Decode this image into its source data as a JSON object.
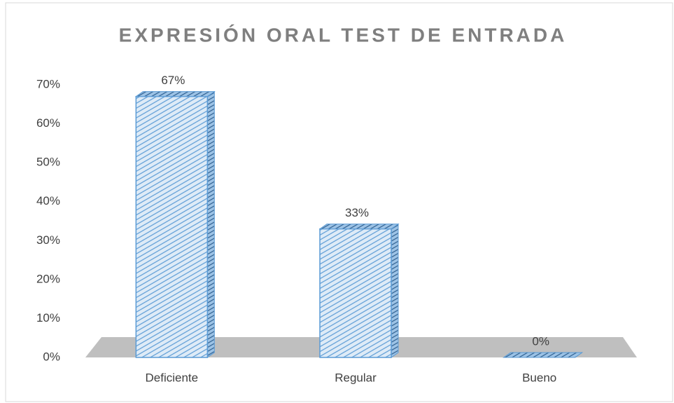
{
  "chart_data": {
    "type": "bar3d",
    "title": "EXPRESIÓN ORAL TEST DE ENTRADA",
    "categories": [
      "Deficiente",
      "Regular",
      "Bueno"
    ],
    "values": [
      67,
      33,
      0
    ],
    "value_labels": [
      "67%",
      "33%",
      "0%"
    ],
    "color": "#5b9bd5",
    "ylim": [
      0,
      70
    ],
    "yticks": [
      {
        "value": 0,
        "label": "0%"
      },
      {
        "value": 10,
        "label": "10%"
      },
      {
        "value": 20,
        "label": "20%"
      },
      {
        "value": 30,
        "label": "30%"
      },
      {
        "value": 40,
        "label": "40%"
      },
      {
        "value": 50,
        "label": "50%"
      },
      {
        "value": 60,
        "label": "60%"
      },
      {
        "value": 70,
        "label": "70%"
      }
    ],
    "grid": false
  }
}
